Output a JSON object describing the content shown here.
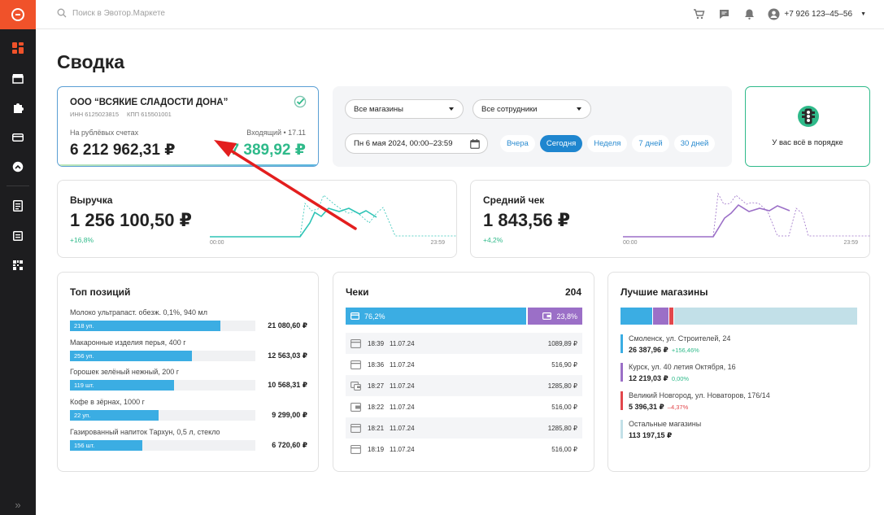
{
  "search": {
    "placeholder": "Поиск в Эвотор.Маркете"
  },
  "user": {
    "phone": "+7 926 123–45–56"
  },
  "page": {
    "title": "Сводка"
  },
  "org": {
    "name": "ООО “ВСЯКИЕ СЛАДОСТИ ДОНА”",
    "inn": "ИНН 6125023815",
    "kpp": "КПП 615501001",
    "balance_label": "На рублёвых счетах",
    "balance": "6 212 962,31 ₽",
    "incoming_label": "Входящий • 17.11",
    "incoming": "7 389,92 ₽"
  },
  "filters": {
    "stores": "Все магазины",
    "employees": "Все сотрудники",
    "date": "Пн 6 мая 2024, 00:00–23:59",
    "periods": [
      {
        "label": "Вчера",
        "active": false
      },
      {
        "label": "Сегодня",
        "active": true
      },
      {
        "label": "Неделя",
        "active": false
      },
      {
        "label": "7 дней",
        "active": false
      },
      {
        "label": "30 дней",
        "active": false
      }
    ]
  },
  "status": {
    "text": "У вас всё в порядке"
  },
  "revenue": {
    "title": "Выручка",
    "value": "1 256 100,50 ₽",
    "change": "+16,8%",
    "start": "00:00",
    "end": "23:59",
    "color": "#2ec4b6"
  },
  "avg_check": {
    "title": "Средний чек",
    "value": "1 843,56 ₽",
    "change": "+4,2%",
    "start": "00:00",
    "end": "23:59",
    "color": "#9b6fc7"
  },
  "top_positions": {
    "title": "Топ позиций",
    "items": [
      {
        "name": "Молоко ультрапаст. обезж. 0,1%, 940 мл",
        "qty": "218 уп.",
        "amount": "21 080,60 ₽",
        "share": 0.81
      },
      {
        "name": "Макаронные изделия перья, 400 г",
        "qty": "256 уп.",
        "amount": "12 563,03 ₽",
        "share": 0.66
      },
      {
        "name": "Горошек зелёный нежный, 200 г",
        "qty": "119 шт.",
        "amount": "10 568,31 ₽",
        "share": 0.56
      },
      {
        "name": "Кофе в зёрнах, 1000 г",
        "qty": "22 уп.",
        "amount": "9 299,00 ₽",
        "share": 0.48
      },
      {
        "name": "Газированный напиток Тархун, 0,5 л, стекло",
        "qty": "156 шт.",
        "amount": "6 720,60 ₽",
        "share": 0.39
      }
    ]
  },
  "checks": {
    "title": "Чеки",
    "total": "204",
    "card_share": "76,2%",
    "cash_share": "23,8%",
    "card_fraction": 0.762,
    "rows": [
      {
        "time": "18:39",
        "date": "11.07.24",
        "amount": "1089,89 ₽",
        "method": "card"
      },
      {
        "time": "18:36",
        "date": "11.07.24",
        "amount": "516,90 ₽",
        "method": "card"
      },
      {
        "time": "18:27",
        "date": "11.07.24",
        "amount": "1285,80 ₽",
        "method": "mixed"
      },
      {
        "time": "18:22",
        "date": "11.07.24",
        "amount": "516,00 ₽",
        "method": "cash"
      },
      {
        "time": "18:21",
        "date": "11.07.24",
        "amount": "1285,80 ₽",
        "method": "card"
      },
      {
        "time": "18:19",
        "date": "11.07.24",
        "amount": "516,00 ₽",
        "method": "card"
      }
    ]
  },
  "best_stores": {
    "title": "Лучшие магазины",
    "items": [
      {
        "name": "Смоленск, ул. Строителей, 24",
        "value": "26 387,96 ₽",
        "change": "+156,46%",
        "color": "#3bade3",
        "change_color": "#2fba8a",
        "share": 0.135
      },
      {
        "name": "Курск, ул. 40 летия Октября, 16",
        "value": "12 219,03 ₽",
        "change": "0,00%",
        "color": "#9b6fc7",
        "change_color": "#2fba8a",
        "share": 0.065
      },
      {
        "name": "Великий Новгород, ул. Новаторов, 176/14",
        "value": "5 396,31 ₽",
        "change": "–4,37%",
        "color": "#e2474c",
        "change_color": "#e2474c",
        "share": 0.02
      },
      {
        "name": "Остальные магазины",
        "value": "113 197,15 ₽",
        "change": "",
        "color": "#c2e0e8",
        "change_color": "#2fba8a",
        "share": 0.78
      }
    ]
  }
}
